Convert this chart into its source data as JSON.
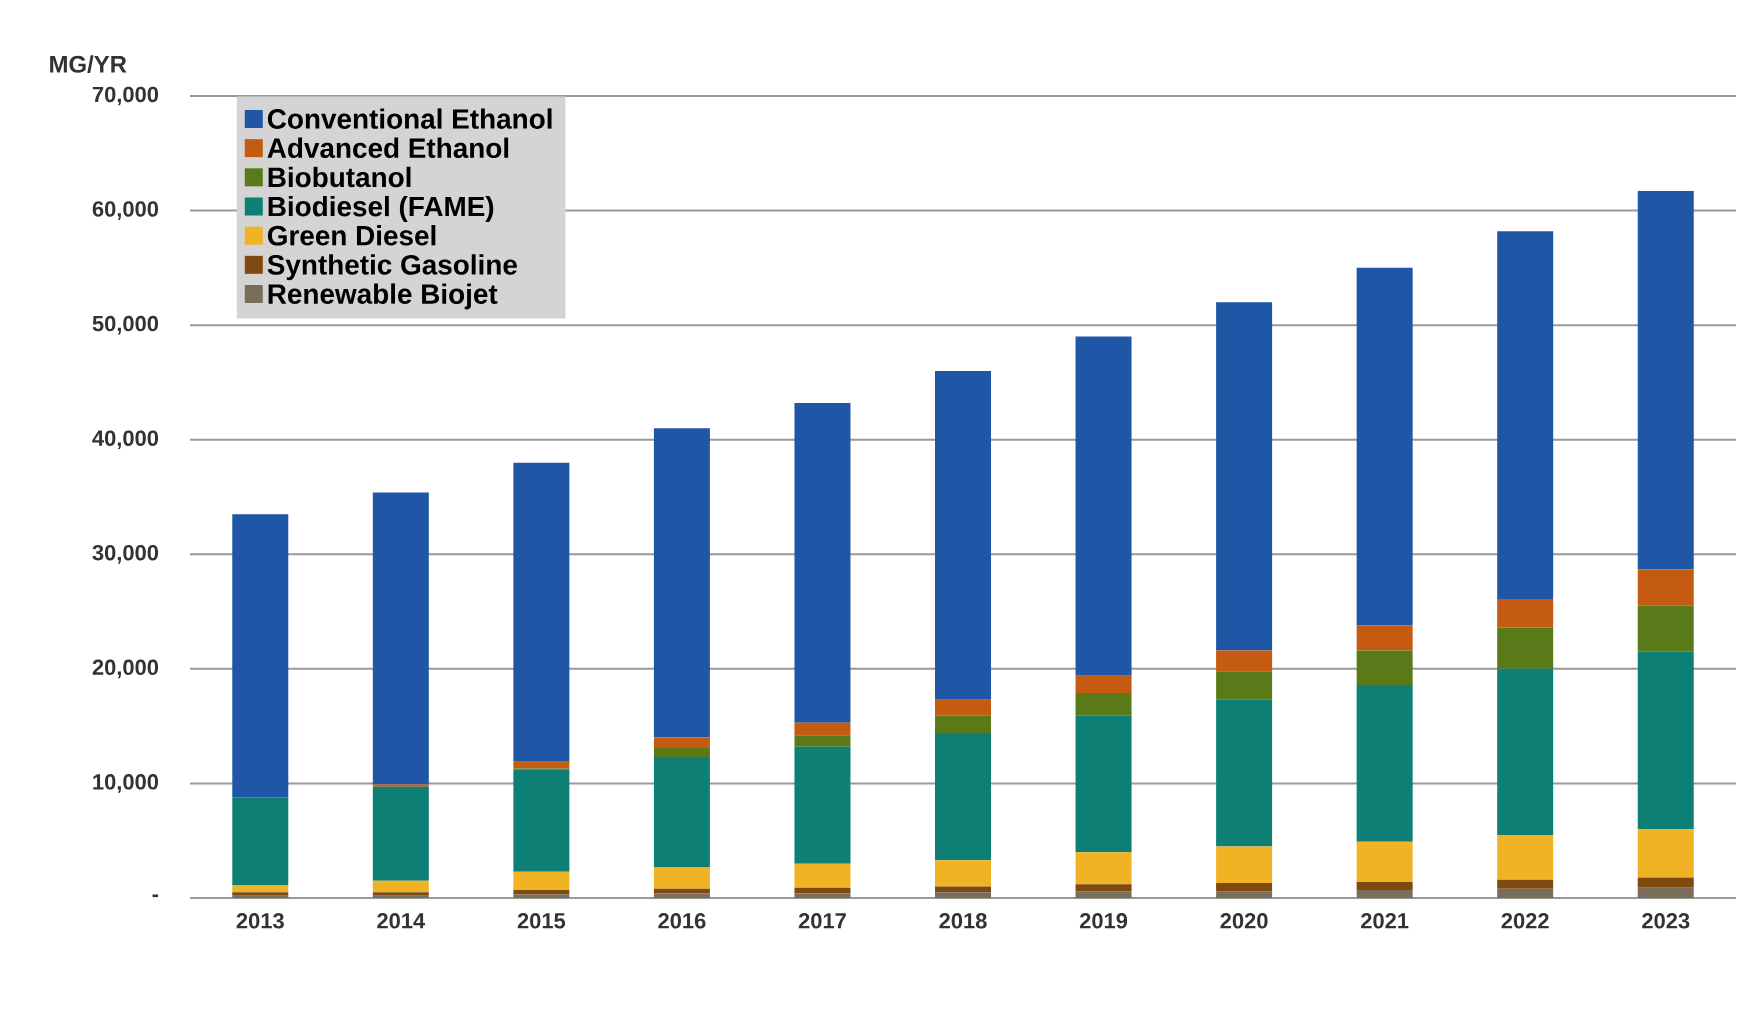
{
  "chart_data": {
    "type": "bar",
    "stacked": true,
    "ylabel": "MG/YR",
    "categories": [
      "2013",
      "2014",
      "2015",
      "2016",
      "2017",
      "2018",
      "2019",
      "2020",
      "2021",
      "2022",
      "2023"
    ],
    "series": [
      {
        "name": "Renewable Biojet",
        "color": "#7a6e5a",
        "values": [
          200,
          200,
          300,
          400,
          400,
          500,
          600,
          600,
          700,
          800,
          900
        ]
      },
      {
        "name": "Synthetic Gasoline",
        "color": "#7f4a10",
        "values": [
          300,
          300,
          400,
          400,
          500,
          500,
          600,
          700,
          700,
          800,
          900
        ]
      },
      {
        "name": "Green Diesel",
        "color": "#f0b323",
        "values": [
          600,
          1000,
          1600,
          1900,
          2100,
          2300,
          2800,
          3200,
          3500,
          3900,
          4200
        ]
      },
      {
        "name": "Biodiesel (FAME)",
        "color": "#0e7f74",
        "values": [
          7700,
          8200,
          8900,
          9600,
          10200,
          11100,
          11900,
          12800,
          13700,
          14500,
          15500
        ]
      },
      {
        "name": "Biobutanol",
        "color": "#5a7a1a",
        "values": [
          0,
          0,
          100,
          800,
          1000,
          1500,
          2000,
          2500,
          3000,
          3600,
          4000
        ]
      },
      {
        "name": "Advanced Ethanol",
        "color": "#c55a11",
        "values": [
          0,
          200,
          600,
          900,
          1100,
          1400,
          1500,
          1800,
          2200,
          2500,
          3200
        ]
      },
      {
        "name": "Conventional Ethanol",
        "color": "#1f56a5",
        "values": [
          24700,
          25500,
          26100,
          27000,
          27900,
          28700,
          29600,
          30400,
          31200,
          32100,
          33000
        ]
      }
    ],
    "ylim": [
      0,
      70000
    ],
    "yticks": [
      {
        "value": 0,
        "label": "-"
      },
      {
        "value": 10000,
        "label": "10,000"
      },
      {
        "value": 20000,
        "label": "20,000"
      },
      {
        "value": 30000,
        "label": "30,000"
      },
      {
        "value": 40000,
        "label": "40,000"
      },
      {
        "value": 50000,
        "label": "50,000"
      },
      {
        "value": 60000,
        "label": "60,000"
      },
      {
        "value": 70000,
        "label": "70,000"
      }
    ],
    "grid": "y",
    "legend": "top left"
  }
}
